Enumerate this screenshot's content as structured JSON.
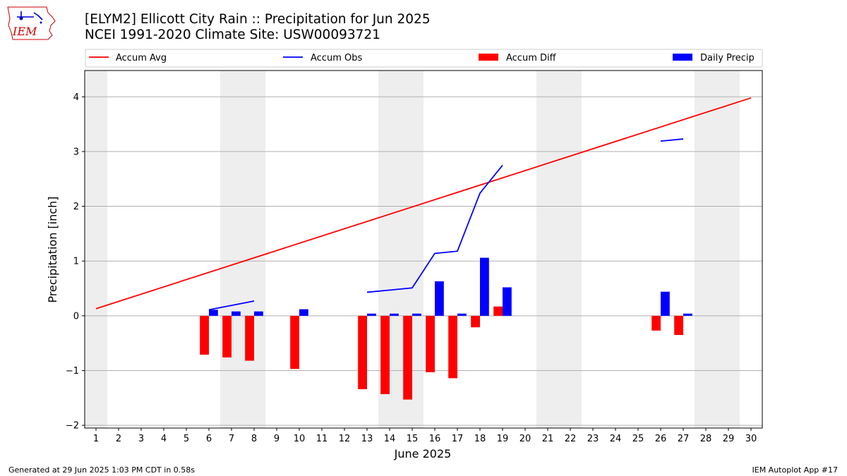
{
  "header": {
    "title_line1": "[ELYM2] Ellicott City Rain :: Precipitation for Jun 2025",
    "title_line2": "NCEI 1991-2020 Climate Site: USW00093721"
  },
  "logo": {
    "text": "IEM",
    "icon": "iem-iowa-logo"
  },
  "footer": {
    "generated": "Generated at 29 Jun 2025 1:03 PM CDT in 0.58s",
    "app": "IEM Autoplot App #17"
  },
  "colors": {
    "accum_avg": "#ff0000",
    "accum_obs": "#0000ff",
    "accum_diff": "#ff0000",
    "daily_precip": "#0000ff",
    "weekend_shade": "#eeeeee",
    "grid": "#b0b0b0"
  },
  "chart_data": {
    "type": "bar",
    "xlabel": "June 2025",
    "ylabel": "Precipitation [inch]",
    "xlim": [
      0.5,
      30.5
    ],
    "ylim": [
      -2.05,
      4.48
    ],
    "xticks": [
      1,
      2,
      3,
      4,
      5,
      6,
      7,
      8,
      9,
      10,
      11,
      12,
      13,
      14,
      15,
      16,
      17,
      18,
      19,
      20,
      21,
      22,
      23,
      24,
      25,
      26,
      27,
      28,
      29,
      30
    ],
    "yticks": [
      -2,
      -1,
      0,
      1,
      2,
      3,
      4
    ],
    "ytick_labels": [
      "−2",
      "−1",
      "0",
      "1",
      "2",
      "3",
      "4"
    ],
    "grid": "horizontal",
    "legend_position": "top",
    "shaded_days": [
      [
        1,
        1
      ],
      [
        7,
        8
      ],
      [
        14,
        15
      ],
      [
        21,
        22
      ],
      [
        28,
        29
      ]
    ],
    "legend": [
      "Accum Avg",
      "Accum Obs",
      "Accum Diff",
      "Daily Precip"
    ],
    "accum_avg": {
      "name": "Accum Avg",
      "x": [
        1,
        30
      ],
      "y": [
        0.13,
        3.98
      ]
    },
    "accum_obs": {
      "name": "Accum Obs",
      "segments": [
        {
          "x": [
            6,
            7,
            8
          ],
          "y": [
            0.11,
            0.19,
            0.27
          ]
        },
        {
          "x": [
            13,
            14,
            15,
            16,
            17,
            18,
            19
          ],
          "y": [
            0.43,
            0.47,
            0.51,
            1.14,
            1.18,
            2.24,
            2.75
          ]
        },
        {
          "x": [
            26,
            27
          ],
          "y": [
            3.19,
            3.23
          ]
        }
      ]
    },
    "accum_diff": {
      "name": "Accum Diff",
      "x": [
        6,
        7,
        8,
        10,
        13,
        14,
        15,
        16,
        17,
        18,
        19,
        26,
        27
      ],
      "y": [
        -0.71,
        -0.76,
        -0.82,
        -0.97,
        -1.34,
        -1.43,
        -1.53,
        -1.03,
        -1.14,
        -0.21,
        0.17,
        -0.27,
        -0.35
      ]
    },
    "daily_precip": {
      "name": "Daily Precip",
      "x": [
        6,
        7,
        8,
        10,
        13,
        14,
        15,
        16,
        17,
        18,
        19,
        26,
        27
      ],
      "y": [
        0.11,
        0.08,
        0.08,
        0.12,
        0.04,
        0.04,
        0.04,
        0.63,
        0.04,
        1.06,
        0.52,
        0.44,
        0.04
      ]
    }
  }
}
